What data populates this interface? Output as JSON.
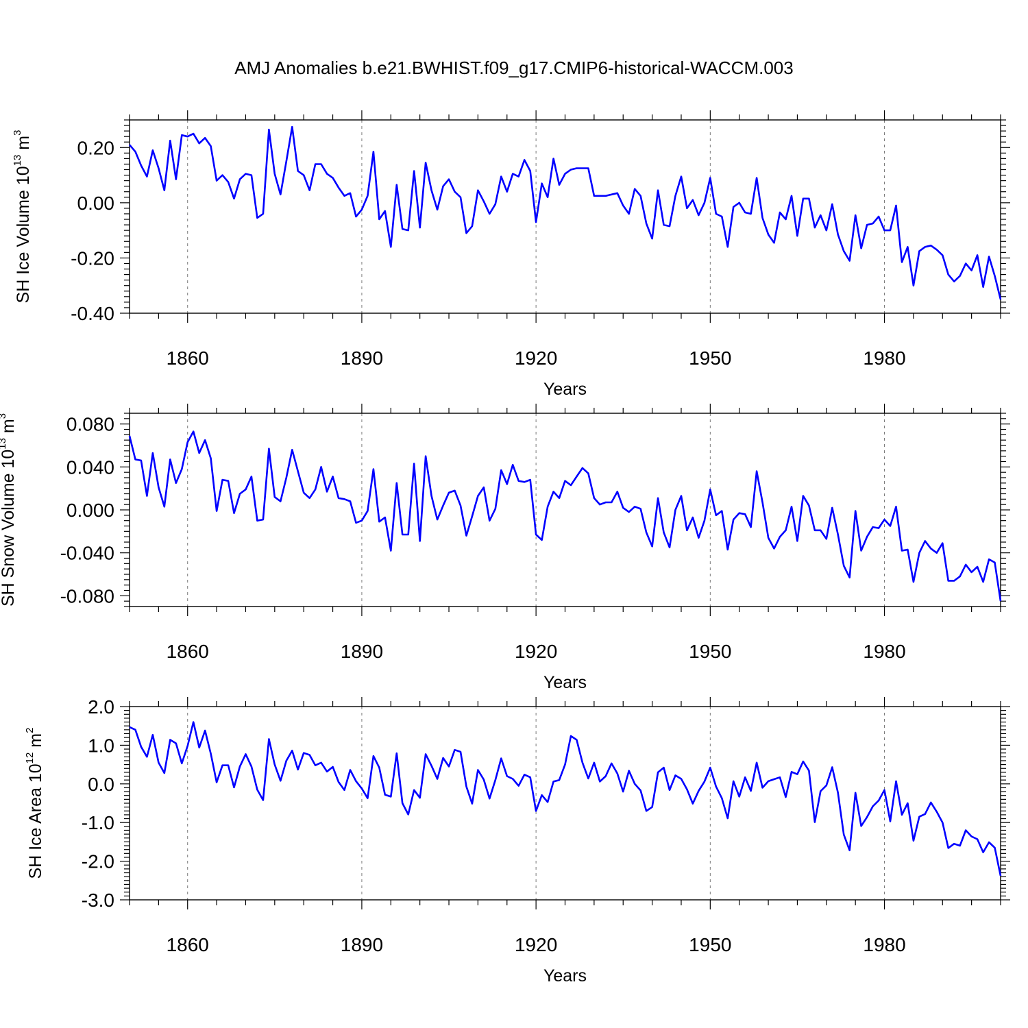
{
  "title": "AMJ Anomalies b.e21.BWHIST.f09_g17.CMIP6-historical-WACCM.003",
  "chart_data": [
    {
      "type": "line",
      "ylabel": "SH Ice Volume 10",
      "ylabel_exp": "13",
      "ylabel_unit": " m",
      "ylabel_unit_exp": "3",
      "xlabel": "Years",
      "xlim": [
        1850,
        2000
      ],
      "ylim": [
        -0.4,
        0.3
      ],
      "yticks": [
        -0.4,
        -0.2,
        0.0,
        0.2
      ],
      "ytick_labels": [
        "-0.40",
        "-0.20",
        "0.00",
        "0.20"
      ],
      "xticks": [
        1860,
        1890,
        1920,
        1950,
        1980
      ],
      "xtick_labels": [
        "1860",
        "1890",
        "1920",
        "1950",
        "1980"
      ],
      "grid": "vertical dashed at major x ticks",
      "line_color": "#0000ff",
      "series": [
        {
          "x": [
            1850,
            1851,
            1852,
            1853,
            1854,
            1855,
            1856,
            1857,
            1858,
            1859,
            1860,
            1861,
            1862,
            1863,
            1864,
            1865,
            1866,
            1867,
            1868,
            1869,
            1870,
            1871,
            1872,
            1873,
            1874,
            1875,
            1876,
            1877,
            1878,
            1879,
            1880,
            1881,
            1882,
            1883,
            1884,
            1885,
            1886,
            1887,
            1888,
            1889,
            1890,
            1891,
            1892,
            1893,
            1894,
            1895,
            1896,
            1897,
            1898,
            1899,
            1900,
            1901,
            1902,
            1903,
            1904,
            1905,
            1906,
            1907,
            1908,
            1909,
            1910,
            1911,
            1912,
            1913,
            1914,
            1915,
            1916,
            1917,
            1918,
            1919,
            1920,
            1921,
            1922,
            1923,
            1924,
            1925,
            1926,
            1927,
            1928,
            1929,
            1930,
            1931,
            1932,
            1933,
            1934,
            1935,
            1936,
            1937,
            1938,
            1939,
            1940,
            1941,
            1942,
            1943,
            1944,
            1945,
            1946,
            1947,
            1948,
            1949,
            1950,
            1951,
            1952,
            1953,
            1954,
            1955,
            1956,
            1957,
            1958,
            1959,
            1960,
            1961,
            1962,
            1963,
            1964,
            1965,
            1966,
            1967,
            1968,
            1969,
            1970,
            1971,
            1972,
            1973,
            1974,
            1975,
            1976,
            1977,
            1978,
            1979,
            1980,
            1981,
            1982,
            1983,
            1984,
            1985,
            1986,
            1987,
            1988,
            1989,
            1990,
            1991,
            1992,
            1993,
            1994,
            1995,
            1996,
            1997,
            1998,
            1999,
            2000
          ],
          "y": [
            0.21,
            0.185,
            0.135,
            0.095,
            0.19,
            0.125,
            0.045,
            0.225,
            0.085,
            0.245,
            0.24,
            0.25,
            0.215,
            0.235,
            0.205,
            0.08,
            0.1,
            0.075,
            0.015,
            0.085,
            0.105,
            0.1,
            -0.055,
            -0.04,
            0.265,
            0.105,
            0.03,
            0.15,
            0.275,
            0.115,
            0.1,
            0.045,
            0.14,
            0.14,
            0.105,
            0.09,
            0.055,
            0.025,
            0.035,
            -0.05,
            -0.025,
            0.025,
            0.185,
            -0.06,
            -0.03,
            -0.16,
            0.065,
            -0.095,
            -0.1,
            0.115,
            -0.09,
            0.145,
            0.045,
            -0.025,
            0.06,
            0.085,
            0.04,
            0.02,
            -0.11,
            -0.085,
            0.045,
            0.005,
            -0.04,
            -0.005,
            0.095,
            0.04,
            0.105,
            0.095,
            0.155,
            0.115,
            -0.07,
            0.07,
            0.02,
            0.16,
            0.065,
            0.105,
            0.12,
            0.125,
            0.125,
            0.125,
            0.025,
            0.025,
            0.025,
            0.03,
            0.035,
            -0.01,
            -0.04,
            0.05,
            0.025,
            -0.075,
            -0.13,
            0.045,
            -0.08,
            -0.085,
            0.025,
            0.095,
            -0.02,
            0.01,
            -0.045,
            0.0,
            0.09,
            -0.04,
            -0.05,
            -0.16,
            -0.015,
            0.0,
            -0.035,
            -0.04,
            0.09,
            -0.055,
            -0.115,
            -0.145,
            -0.035,
            -0.06,
            0.025,
            -0.12,
            0.015,
            0.015,
            -0.09,
            -0.045,
            -0.1,
            -0.005,
            -0.115,
            -0.175,
            -0.21,
            -0.045,
            -0.165,
            -0.08,
            -0.075,
            -0.05,
            -0.1,
            -0.1,
            -0.01,
            -0.215,
            -0.16,
            -0.3,
            -0.175,
            -0.16,
            -0.155,
            -0.17,
            -0.19,
            -0.26,
            -0.285,
            -0.265,
            -0.22,
            -0.245,
            -0.19,
            -0.305,
            -0.195,
            -0.265,
            -0.35
          ]
        }
      ]
    },
    {
      "type": "line",
      "ylabel": "SH Snow Volume 10",
      "ylabel_exp": "13",
      "ylabel_unit": " m",
      "ylabel_unit_exp": "3",
      "xlabel": "Years",
      "xlim": [
        1850,
        2000
      ],
      "ylim": [
        -0.09,
        0.09
      ],
      "yticks": [
        -0.08,
        -0.04,
        0.0,
        0.04,
        0.08
      ],
      "ytick_labels": [
        "-0.080",
        "-0.040",
        "0.000",
        "0.040",
        "0.080"
      ],
      "xticks": [
        1860,
        1890,
        1920,
        1950,
        1980
      ],
      "xtick_labels": [
        "1860",
        "1890",
        "1920",
        "1950",
        "1980"
      ],
      "grid": "vertical dashed at major x ticks",
      "line_color": "#0000ff",
      "series": [
        {
          "x": [
            1850,
            1851,
            1852,
            1853,
            1854,
            1855,
            1856,
            1857,
            1858,
            1859,
            1860,
            1861,
            1862,
            1863,
            1864,
            1865,
            1866,
            1867,
            1868,
            1869,
            1870,
            1871,
            1872,
            1873,
            1874,
            1875,
            1876,
            1877,
            1878,
            1879,
            1880,
            1881,
            1882,
            1883,
            1884,
            1885,
            1886,
            1887,
            1888,
            1889,
            1890,
            1891,
            1892,
            1893,
            1894,
            1895,
            1896,
            1897,
            1898,
            1899,
            1900,
            1901,
            1902,
            1903,
            1904,
            1905,
            1906,
            1907,
            1908,
            1909,
            1910,
            1911,
            1912,
            1913,
            1914,
            1915,
            1916,
            1917,
            1918,
            1919,
            1920,
            1921,
            1922,
            1923,
            1924,
            1925,
            1926,
            1927,
            1928,
            1929,
            1930,
            1931,
            1932,
            1933,
            1934,
            1935,
            1936,
            1937,
            1938,
            1939,
            1940,
            1941,
            1942,
            1943,
            1944,
            1945,
            1946,
            1947,
            1948,
            1949,
            1950,
            1951,
            1952,
            1953,
            1954,
            1955,
            1956,
            1957,
            1958,
            1959,
            1960,
            1961,
            1962,
            1963,
            1964,
            1965,
            1966,
            1967,
            1968,
            1969,
            1970,
            1971,
            1972,
            1973,
            1974,
            1975,
            1976,
            1977,
            1978,
            1979,
            1980,
            1981,
            1982,
            1983,
            1984,
            1985,
            1986,
            1987,
            1988,
            1989,
            1990,
            1991,
            1992,
            1993,
            1994,
            1995,
            1996,
            1997,
            1998,
            1999,
            2000
          ],
          "y": [
            0.069,
            0.047,
            0.046,
            0.013,
            0.053,
            0.021,
            0.003,
            0.047,
            0.025,
            0.038,
            0.063,
            0.073,
            0.053,
            0.065,
            0.048,
            -0.001,
            0.028,
            0.027,
            -0.003,
            0.015,
            0.019,
            0.031,
            -0.01,
            -0.009,
            0.057,
            0.012,
            0.008,
            0.03,
            0.056,
            0.036,
            0.016,
            0.011,
            0.019,
            0.04,
            0.017,
            0.031,
            0.011,
            0.01,
            0.008,
            -0.012,
            -0.01,
            -0.001,
            0.038,
            -0.011,
            -0.007,
            -0.038,
            0.025,
            -0.023,
            -0.023,
            0.043,
            -0.029,
            0.05,
            0.013,
            -0.009,
            0.004,
            0.016,
            0.018,
            0.004,
            -0.024,
            -0.006,
            0.013,
            0.021,
            -0.01,
            0.001,
            0.037,
            0.024,
            0.042,
            0.027,
            0.026,
            0.028,
            -0.023,
            -0.028,
            0.003,
            0.017,
            0.011,
            0.027,
            0.023,
            0.031,
            0.039,
            0.034,
            0.011,
            0.005,
            0.007,
            0.007,
            0.017,
            0.002,
            -0.002,
            0.003,
            0.001,
            -0.021,
            -0.034,
            0.011,
            -0.021,
            -0.035,
            0.0,
            0.013,
            -0.019,
            -0.007,
            -0.026,
            -0.01,
            0.019,
            -0.005,
            -0.001,
            -0.037,
            -0.009,
            -0.003,
            -0.004,
            -0.016,
            0.036,
            0.007,
            -0.026,
            -0.036,
            -0.025,
            -0.019,
            0.003,
            -0.029,
            0.013,
            0.004,
            -0.019,
            -0.019,
            -0.027,
            0.002,
            -0.023,
            -0.052,
            -0.063,
            -0.001,
            -0.038,
            -0.025,
            -0.016,
            -0.017,
            -0.009,
            -0.015,
            0.003,
            -0.038,
            -0.037,
            -0.067,
            -0.04,
            -0.029,
            -0.036,
            -0.04,
            -0.031,
            -0.066,
            -0.066,
            -0.062,
            -0.051,
            -0.058,
            -0.053,
            -0.067,
            -0.046,
            -0.049,
            -0.085
          ]
        }
      ]
    },
    {
      "type": "line",
      "ylabel": "SH Ice Area 10",
      "ylabel_exp": "12",
      "ylabel_unit": " m",
      "ylabel_unit_exp": "2",
      "xlabel": "Years",
      "xlim": [
        1850,
        2000
      ],
      "ylim": [
        -3.0,
        2.0
      ],
      "yticks": [
        -3.0,
        -2.0,
        -1.0,
        0.0,
        1.0,
        2.0
      ],
      "ytick_labels": [
        "-3.0",
        "-2.0",
        "-1.0",
        "0.0",
        "1.0",
        "2.0"
      ],
      "xticks": [
        1860,
        1890,
        1920,
        1950,
        1980
      ],
      "xtick_labels": [
        "1860",
        "1890",
        "1920",
        "1950",
        "1980"
      ],
      "grid": "vertical dashed at major x ticks",
      "line_color": "#0000ff",
      "series": [
        {
          "x": [
            1850,
            1851,
            1852,
            1853,
            1854,
            1855,
            1856,
            1857,
            1858,
            1859,
            1860,
            1861,
            1862,
            1863,
            1864,
            1865,
            1866,
            1867,
            1868,
            1869,
            1870,
            1871,
            1872,
            1873,
            1874,
            1875,
            1876,
            1877,
            1878,
            1879,
            1880,
            1881,
            1882,
            1883,
            1884,
            1885,
            1886,
            1887,
            1888,
            1889,
            1890,
            1891,
            1892,
            1893,
            1894,
            1895,
            1896,
            1897,
            1898,
            1899,
            1900,
            1901,
            1902,
            1903,
            1904,
            1905,
            1906,
            1907,
            1908,
            1909,
            1910,
            1911,
            1912,
            1913,
            1914,
            1915,
            1916,
            1917,
            1918,
            1919,
            1920,
            1921,
            1922,
            1923,
            1924,
            1925,
            1926,
            1927,
            1928,
            1929,
            1930,
            1931,
            1932,
            1933,
            1934,
            1935,
            1936,
            1937,
            1938,
            1939,
            1940,
            1941,
            1942,
            1943,
            1944,
            1945,
            1946,
            1947,
            1948,
            1949,
            1950,
            1951,
            1952,
            1953,
            1954,
            1955,
            1956,
            1957,
            1958,
            1959,
            1960,
            1961,
            1962,
            1963,
            1964,
            1965,
            1966,
            1967,
            1968,
            1969,
            1970,
            1971,
            1972,
            1973,
            1974,
            1975,
            1976,
            1977,
            1978,
            1979,
            1980,
            1981,
            1982,
            1983,
            1984,
            1985,
            1986,
            1987,
            1988,
            1989,
            1990,
            1991,
            1992,
            1993,
            1994,
            1995,
            1996,
            1997,
            1998,
            1999,
            2000
          ],
          "y": [
            1.47,
            1.4,
            0.96,
            0.7,
            1.27,
            0.55,
            0.28,
            1.14,
            1.05,
            0.53,
            0.98,
            1.6,
            0.94,
            1.38,
            0.78,
            0.04,
            0.48,
            0.48,
            -0.09,
            0.45,
            0.77,
            0.45,
            -0.15,
            -0.42,
            1.16,
            0.5,
            0.08,
            0.6,
            0.86,
            0.37,
            0.8,
            0.75,
            0.48,
            0.55,
            0.32,
            0.44,
            0.05,
            -0.16,
            0.36,
            0.07,
            -0.12,
            -0.37,
            0.72,
            0.42,
            -0.28,
            -0.33,
            0.79,
            -0.5,
            -0.79,
            -0.16,
            -0.36,
            0.77,
            0.47,
            0.13,
            0.67,
            0.45,
            0.88,
            0.83,
            -0.07,
            -0.51,
            0.36,
            0.11,
            -0.38,
            0.1,
            0.66,
            0.2,
            0.13,
            -0.05,
            0.24,
            0.17,
            -0.7,
            -0.29,
            -0.47,
            0.06,
            0.1,
            0.5,
            1.24,
            1.14,
            0.55,
            0.14,
            0.55,
            0.06,
            0.2,
            0.53,
            0.27,
            -0.2,
            0.34,
            0.0,
            -0.17,
            -0.7,
            -0.6,
            0.3,
            0.42,
            -0.16,
            0.22,
            0.13,
            -0.14,
            -0.51,
            -0.18,
            0.06,
            0.42,
            -0.07,
            -0.37,
            -0.89,
            0.07,
            -0.33,
            0.17,
            -0.18,
            0.55,
            -0.1,
            0.07,
            0.12,
            0.17,
            -0.34,
            0.31,
            0.25,
            0.58,
            0.34,
            -0.99,
            -0.19,
            -0.04,
            0.43,
            -0.23,
            -1.31,
            -1.72,
            -0.23,
            -1.09,
            -0.86,
            -0.58,
            -0.43,
            -0.16,
            -0.97,
            0.07,
            -0.8,
            -0.5,
            -1.47,
            -0.85,
            -0.78,
            -0.48,
            -0.72,
            -1.0,
            -1.66,
            -1.55,
            -1.6,
            -1.2,
            -1.36,
            -1.43,
            -1.77,
            -1.51,
            -1.65,
            -2.38
          ]
        }
      ]
    }
  ]
}
